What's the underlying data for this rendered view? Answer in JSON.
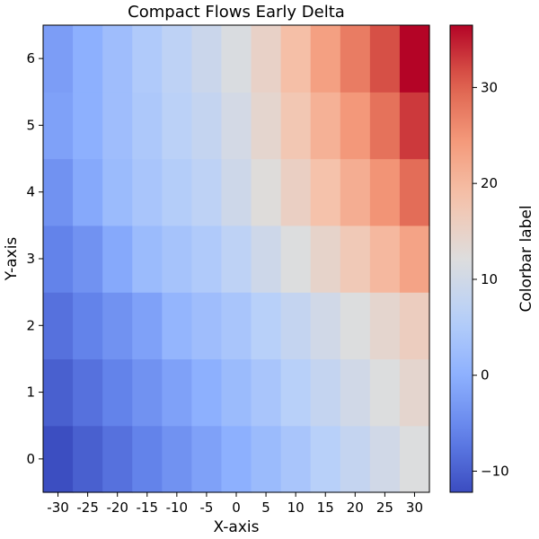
{
  "chart_data": {
    "type": "heatmap",
    "title": "Compact Flows Early Delta",
    "xlabel": "X-axis",
    "ylabel": "Y-axis",
    "colorbar_label": "Colorbar label",
    "colormap": "coolwarm",
    "x": [
      -30,
      -25,
      -20,
      -15,
      -10,
      -5,
      0,
      5,
      10,
      15,
      20,
      25,
      30
    ],
    "x_tick_labels": [
      "-30",
      "-25",
      "-20",
      "-15",
      "-10",
      "-5",
      "0",
      "5",
      "10",
      "15",
      "20",
      "25",
      "30"
    ],
    "y": [
      0,
      1,
      2,
      3,
      4,
      5,
      6
    ],
    "y_tick_labels": [
      "0",
      "1",
      "2",
      "3",
      "4",
      "5",
      "6"
    ],
    "z": [
      [
        -12.0,
        -10.0,
        -8.0,
        -6.0,
        -4.0,
        -2.0,
        0.0,
        2.0,
        4.0,
        6.0,
        8.0,
        10.0,
        12.0
      ],
      [
        -10.0,
        -8.0,
        -6.0,
        -4.0,
        -2.0,
        0.0,
        2.0,
        4.0,
        6.0,
        8.0,
        10.0,
        12.0,
        14.0
      ],
      [
        -8.0,
        -6.0,
        -4.0,
        -2.0,
        1.0,
        2.5,
        4.0,
        6.0,
        8.0,
        10.0,
        12.0,
        14.0,
        16.0
      ],
      [
        -6.0,
        -4.0,
        -1.0,
        2.0,
        3.5,
        5.0,
        7.0,
        9.5,
        12.0,
        14.5,
        17.0,
        20.0,
        23.0
      ],
      [
        -4.0,
        -1.0,
        2.0,
        4.0,
        5.5,
        7.0,
        9.5,
        12.5,
        15.5,
        18.5,
        21.5,
        25.0,
        29.0
      ],
      [
        -2.0,
        0.0,
        2.5,
        4.5,
        6.5,
        8.0,
        10.5,
        14.0,
        17.5,
        21.0,
        24.5,
        28.5,
        33.0
      ],
      [
        -2.5,
        0.0,
        2.5,
        5.0,
        7.0,
        9.0,
        11.5,
        15.0,
        19.0,
        23.5,
        27.5,
        31.5,
        36.5
      ]
    ],
    "vmin": -12.2,
    "vmax": 36.5,
    "colorbar_ticks": [
      -10,
      0,
      10,
      20,
      30
    ],
    "colorbar_tick_labels": [
      "−10",
      "0",
      "10",
      "20",
      "30"
    ]
  }
}
